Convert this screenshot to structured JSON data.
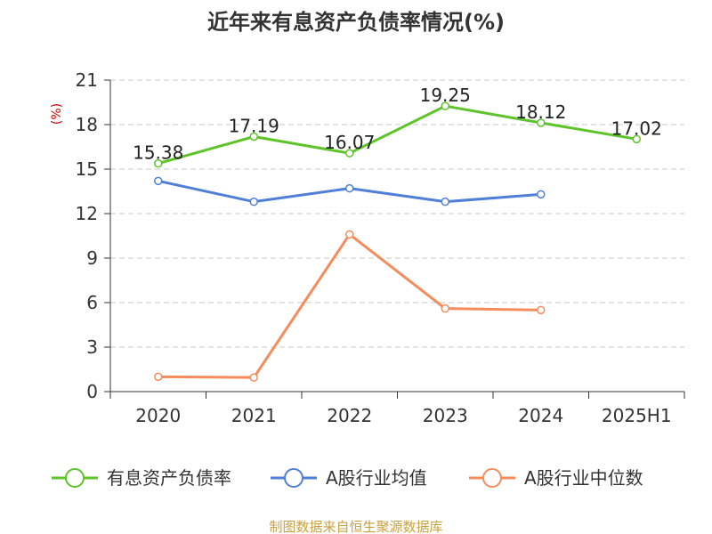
{
  "chart_data": {
    "type": "line",
    "title": "近年来有息资产负债率情况(%)",
    "y_unit": "(%)",
    "categories": [
      "2020",
      "2021",
      "2022",
      "2023",
      "2024",
      "2025H1"
    ],
    "ylim": [
      0,
      21
    ],
    "yticks": [
      0,
      3,
      6,
      9,
      12,
      15,
      18,
      21
    ],
    "grid": true,
    "legend_position": "bottom",
    "series": [
      {
        "name": "有息资产负债率",
        "color": "#5ec42a",
        "values": [
          15.38,
          17.19,
          16.07,
          19.25,
          18.12,
          17.02
        ],
        "labels": [
          "15.38",
          "17.19",
          "16.07",
          "19.25",
          "18.12",
          "17.02"
        ]
      },
      {
        "name": "A股行业均值",
        "color": "#4f7fd6",
        "values": [
          14.2,
          12.8,
          13.7,
          12.8,
          13.3,
          null
        ]
      },
      {
        "name": "A股行业中位数",
        "color": "#f48c5c",
        "values": [
          1.0,
          0.95,
          10.6,
          5.6,
          5.5,
          null
        ]
      }
    ]
  },
  "source": "制图数据来自恒生聚源数据库"
}
